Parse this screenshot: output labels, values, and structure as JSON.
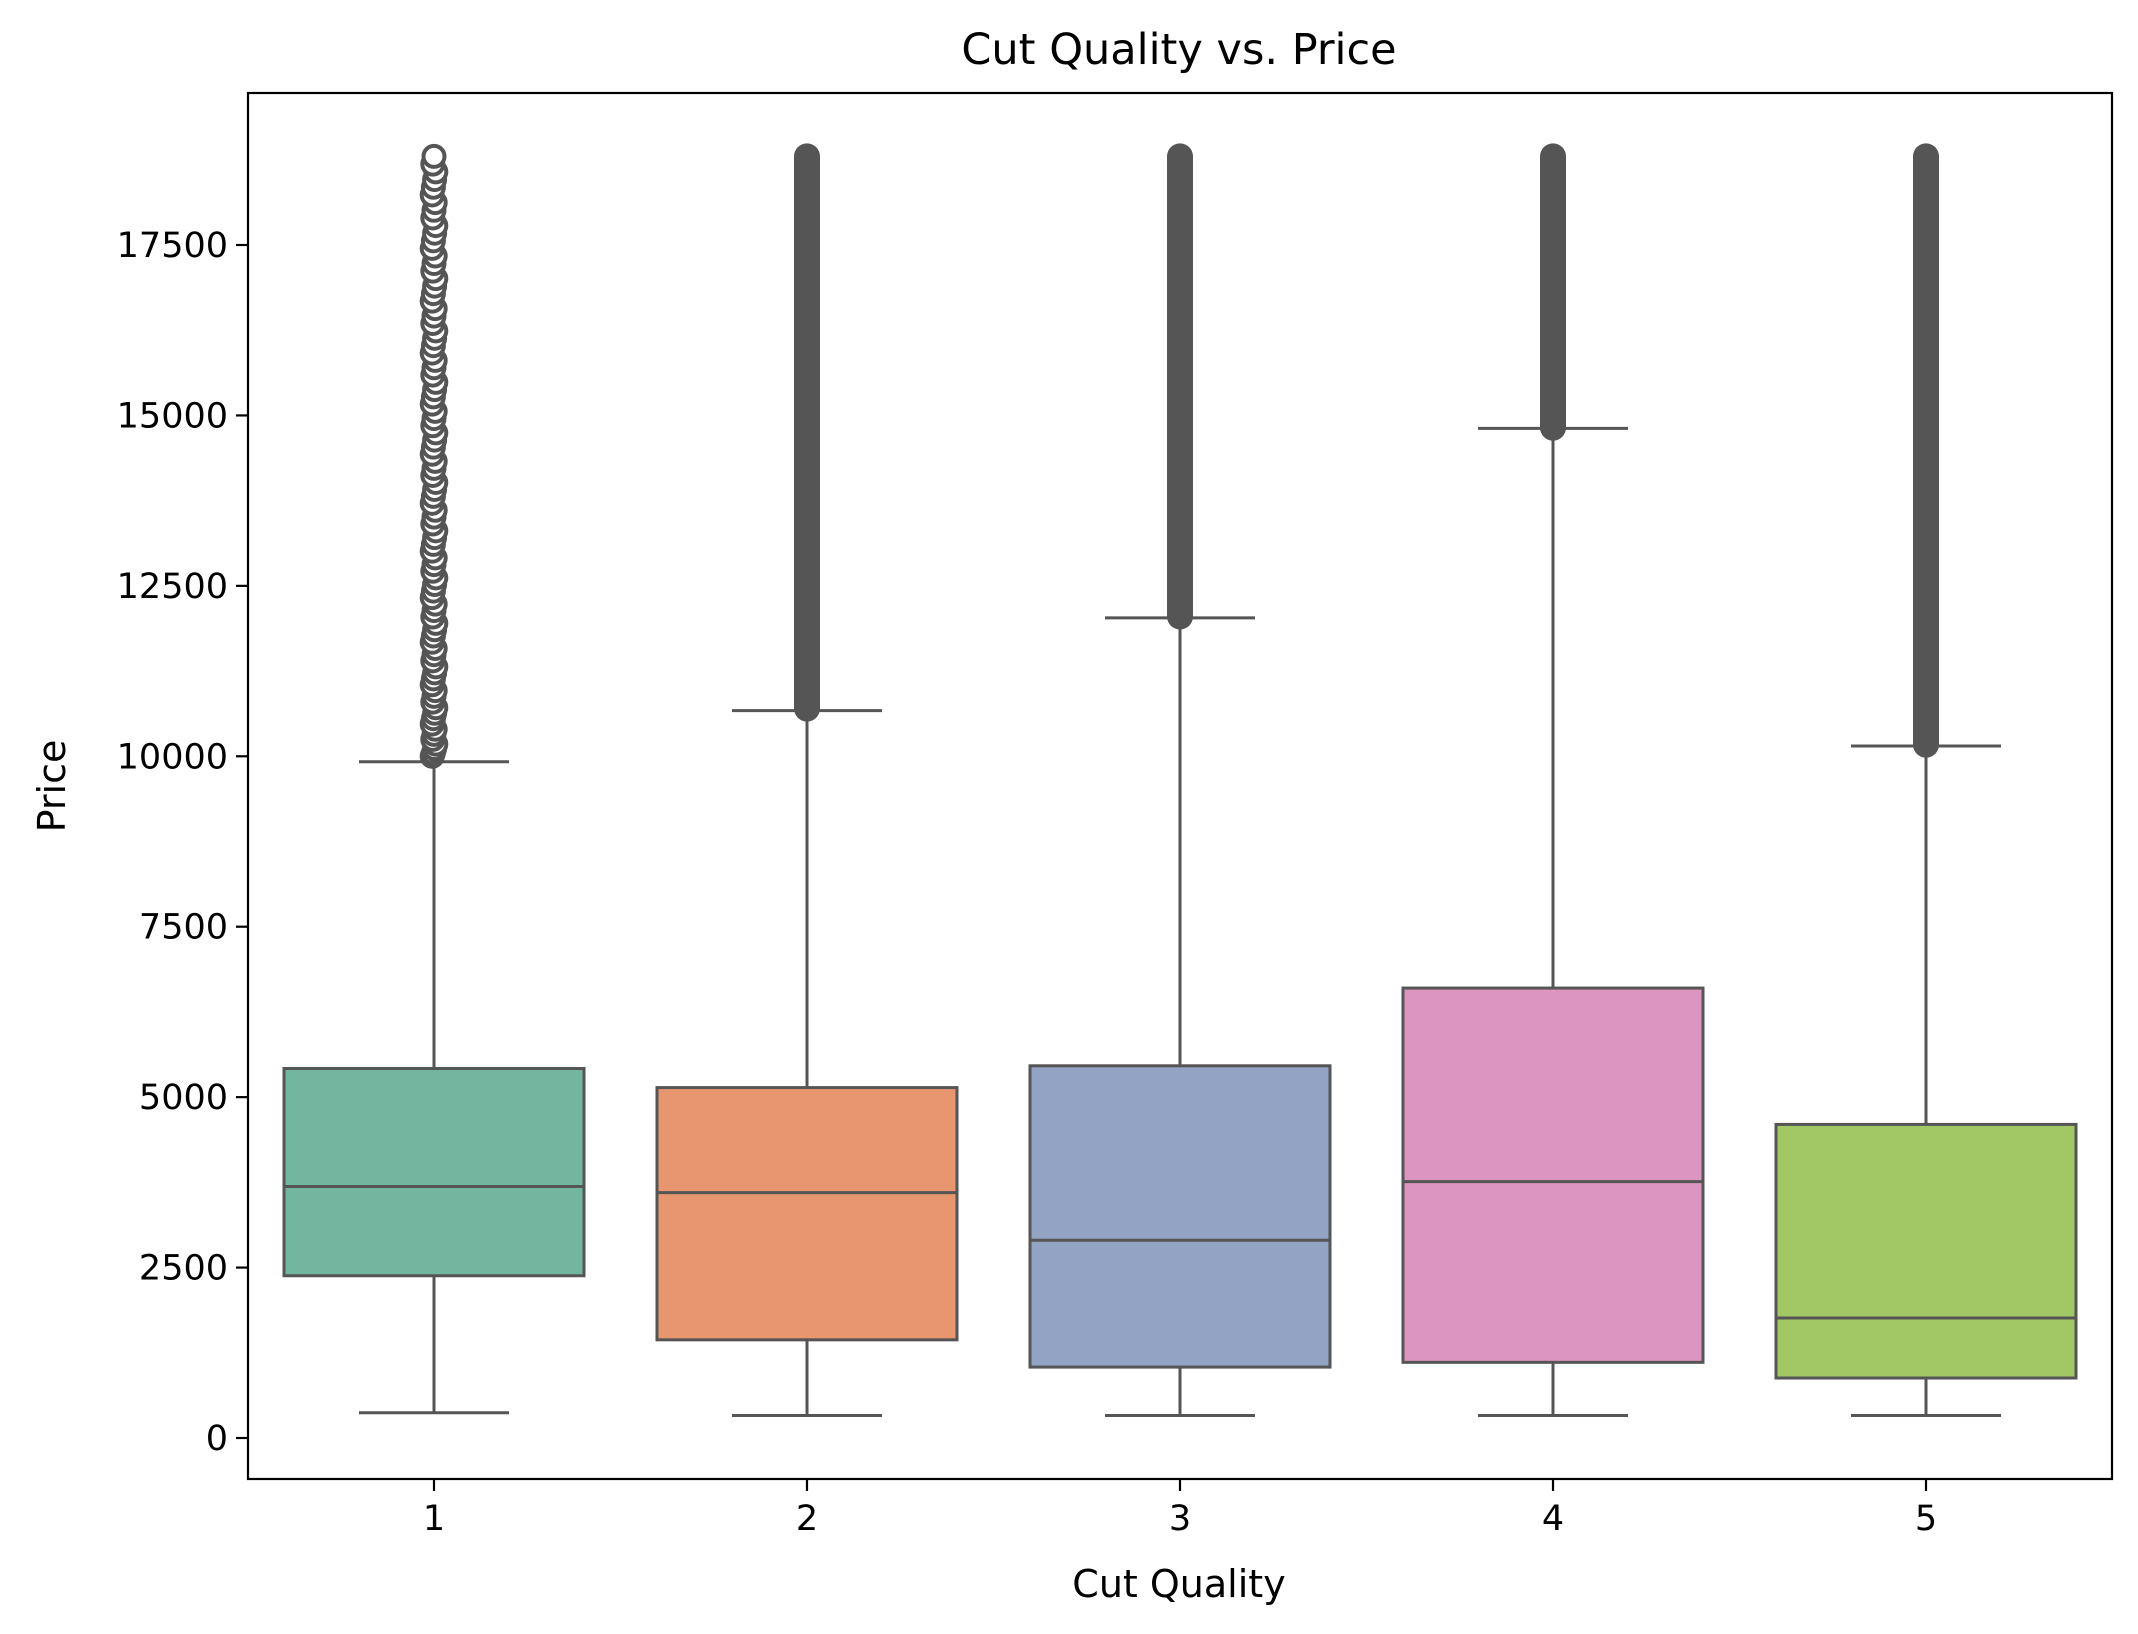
{
  "chart_data": {
    "type": "box",
    "title": "Cut Quality vs. Price",
    "xlabel": "Cut Quality",
    "ylabel": "Price",
    "ylim": [
      -1200,
      19700
    ],
    "yticks": [
      0,
      2500,
      5000,
      7500,
      10000,
      12500,
      15000,
      17500
    ],
    "ytick_labels": [
      "0",
      "2500",
      "5000",
      "7500",
      "10000",
      "12500",
      "15000",
      "17500"
    ],
    "grid": false,
    "legend": "none",
    "categories": [
      "1",
      "2",
      "3",
      "4",
      "5"
    ],
    "boxes": [
      {
        "category": "1",
        "color": "#73b6a0",
        "whisker_low": 370,
        "q1": 2380,
        "median": 3690,
        "q3": 5420,
        "whisker_high": 9920,
        "outliers_min": 10000,
        "outliers_max": 18800,
        "outlier_style": "sparse"
      },
      {
        "category": "2",
        "color": "#e8966f",
        "whisker_low": 330,
        "q1": 1440,
        "median": 3600,
        "q3": 5140,
        "whisker_high": 10670,
        "outliers_min": 10700,
        "outliers_max": 18800,
        "outlier_style": "dense"
      },
      {
        "category": "3",
        "color": "#93a3c3",
        "whisker_low": 330,
        "q1": 1040,
        "median": 2900,
        "q3": 5460,
        "whisker_high": 12030,
        "outliers_min": 12050,
        "outliers_max": 18800,
        "outlier_style": "dense"
      },
      {
        "category": "4",
        "color": "#dc95c0",
        "whisker_low": 330,
        "q1": 1110,
        "median": 3760,
        "q3": 6600,
        "whisker_high": 14810,
        "outliers_min": 14820,
        "outliers_max": 18800,
        "outlier_style": "dense"
      },
      {
        "category": "5",
        "color": "#a2c865",
        "whisker_low": 330,
        "q1": 880,
        "median": 1760,
        "q3": 4600,
        "whisker_high": 10150,
        "outliers_min": 10170,
        "outliers_max": 18800,
        "outlier_style": "dense"
      }
    ],
    "line_color": "#555555"
  }
}
